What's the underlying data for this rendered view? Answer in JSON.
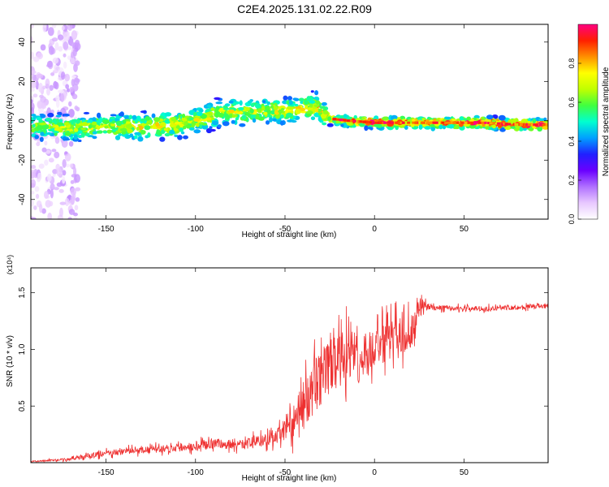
{
  "title": "C2E4.2025.131.02.22.R09",
  "chart_data": [
    {
      "type": "heatmap",
      "xlabel": "Height of straight line (km)",
      "ylabel": "Frequency (Hz)",
      "xlim": [
        -192,
        97
      ],
      "ylim": [
        -50,
        49
      ],
      "xticks": [
        -150,
        -100,
        -50,
        0,
        50
      ],
      "xtick_labels": [
        "-150",
        "-100",
        "-50",
        "0",
        "50"
      ],
      "yticks": [
        -40,
        -20,
        0,
        20,
        40
      ],
      "ytick_labels": [
        "-40",
        "-20",
        "0",
        "20",
        "40"
      ],
      "colorbar": {
        "label": "Normalized spectral amplitude",
        "range": [
          0,
          1
        ],
        "ticks": [
          0.0,
          0.2,
          0.4,
          0.6,
          0.8
        ],
        "tick_labels": [
          "0.0",
          "0.2",
          "0.4",
          "0.6",
          "0.8"
        ],
        "colormap": [
          "#ffffff",
          "#e8c8ff",
          "#b070ff",
          "#6a00ff",
          "#2020ff",
          "#00a0ff",
          "#00ffd0",
          "#40ff40",
          "#c0ff00",
          "#ffff00",
          "#ff9000",
          "#ff2000",
          "#ff0080"
        ]
      },
      "ridge": {
        "x": [
          -185,
          -170,
          -150,
          -130,
          -110,
          -100,
          -90,
          -80,
          -70,
          -60,
          -50,
          -40,
          -32,
          -25,
          -15,
          0,
          20,
          40,
          60,
          80,
          97
        ],
        "y": [
          -3,
          -4,
          -3,
          -3,
          -2,
          0,
          3,
          5,
          4,
          5,
          5,
          6,
          7,
          1,
          0,
          -1,
          -1,
          -1,
          -1,
          -2,
          -2
        ],
        "amplitude": [
          0.45,
          0.5,
          0.5,
          0.55,
          0.55,
          0.5,
          0.55,
          0.5,
          0.5,
          0.5,
          0.55,
          0.55,
          0.6,
          0.55,
          0.6,
          0.8,
          0.75,
          0.7,
          0.8,
          0.8,
          0.8
        ]
      },
      "scatter_region": {
        "x": [
          -192,
          -165
        ],
        "y": [
          -50,
          49
        ],
        "amplitude": 0.1
      },
      "grid": false
    },
    {
      "type": "line",
      "xlabel": "Height of straight line (km)",
      "ylabel": "SNR (10 * v/v)",
      "yscale_note": "(x10⁴)",
      "xlim": [
        -192,
        97
      ],
      "ylim": [
        0,
        1.72
      ],
      "xticks": [
        -150,
        -100,
        -50,
        0,
        50
      ],
      "xtick_labels": [
        "-150",
        "-100",
        "-50",
        "0",
        "50"
      ],
      "yticks": [
        0.5,
        1.0,
        1.5
      ],
      "ytick_labels": [
        "0.5",
        "1.0",
        "1.5"
      ],
      "series": [
        {
          "color": "#ee3030",
          "x": [
            -192,
            -170,
            -160,
            -150,
            -140,
            -130,
            -120,
            -110,
            -100,
            -90,
            -80,
            -70,
            -60,
            -55,
            -50,
            -45,
            -40,
            -35,
            -30,
            -25,
            -20,
            -15,
            -10,
            -5,
            0,
            5,
            10,
            15,
            20,
            25,
            30,
            35,
            40,
            50,
            60,
            70,
            80,
            90,
            97
          ],
          "y": [
            0.01,
            0.03,
            0.06,
            0.08,
            0.1,
            0.11,
            0.12,
            0.13,
            0.15,
            0.17,
            0.16,
            0.17,
            0.2,
            0.22,
            0.3,
            0.38,
            0.5,
            0.62,
            0.75,
            0.85,
            0.9,
            0.95,
            0.92,
            0.95,
            1.0,
            1.05,
            1.1,
            1.12,
            1.15,
            1.35,
            1.38,
            1.36,
            1.37,
            1.36,
            1.36,
            1.37,
            1.37,
            1.38,
            1.38
          ],
          "noise": [
            0.01,
            0.02,
            0.04,
            0.05,
            0.05,
            0.05,
            0.06,
            0.06,
            0.07,
            0.08,
            0.08,
            0.09,
            0.1,
            0.12,
            0.18,
            0.28,
            0.35,
            0.4,
            0.45,
            0.45,
            0.45,
            0.42,
            0.4,
            0.38,
            0.35,
            0.32,
            0.3,
            0.3,
            0.3,
            0.15,
            0.05,
            0.04,
            0.04,
            0.04,
            0.04,
            0.04,
            0.04,
            0.04,
            0.04
          ]
        }
      ],
      "grid": false
    }
  ]
}
